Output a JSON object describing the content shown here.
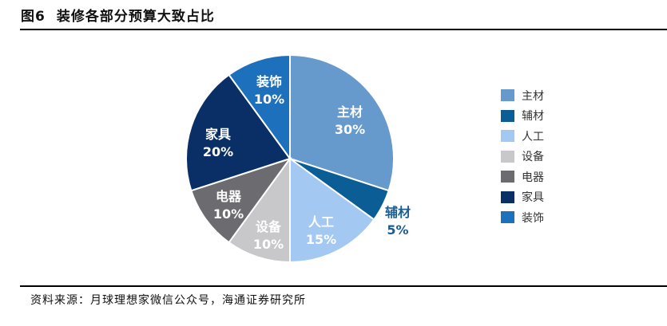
{
  "title": {
    "figure": "图6",
    "text": "装修各部分预算大致占比"
  },
  "source": "资料来源：月球理想家微信公众号，海通证券研究所",
  "chart_data": {
    "type": "pie",
    "title": "装修各部分预算大致占比",
    "categories": [
      "主材",
      "辅材",
      "人工",
      "设备",
      "电器",
      "家具",
      "装饰"
    ],
    "values": [
      30,
      5,
      15,
      10,
      10,
      20,
      10
    ],
    "labels": [
      "30%",
      "5%",
      "15%",
      "10%",
      "10%",
      "20%",
      "10%"
    ],
    "colors": [
      "#6699cc",
      "#0b5d96",
      "#a3c8f2",
      "#c8c8cb",
      "#6b6b70",
      "#0a2f66",
      "#1d70bc"
    ],
    "start_angle_deg": 0,
    "direction": "clockwise",
    "legend_position": "right"
  },
  "legend": [
    {
      "label": "主材",
      "color": "#6699cc"
    },
    {
      "label": "辅材",
      "color": "#0b5d96"
    },
    {
      "label": "人工",
      "color": "#a3c8f2"
    },
    {
      "label": "设备",
      "color": "#c8c8cb"
    },
    {
      "label": "电器",
      "color": "#6b6b70"
    },
    {
      "label": "家具",
      "color": "#0a2f66"
    },
    {
      "label": "装饰",
      "color": "#1d70bc"
    }
  ],
  "slice_labels": [
    {
      "name": "主材",
      "pct": "30%"
    },
    {
      "name": "辅材",
      "pct": "5%"
    },
    {
      "name": "人工",
      "pct": "15%"
    },
    {
      "name": "设备",
      "pct": "10%"
    },
    {
      "name": "电器",
      "pct": "10%"
    },
    {
      "name": "家具",
      "pct": "20%"
    },
    {
      "name": "装饰",
      "pct": "10%"
    }
  ]
}
